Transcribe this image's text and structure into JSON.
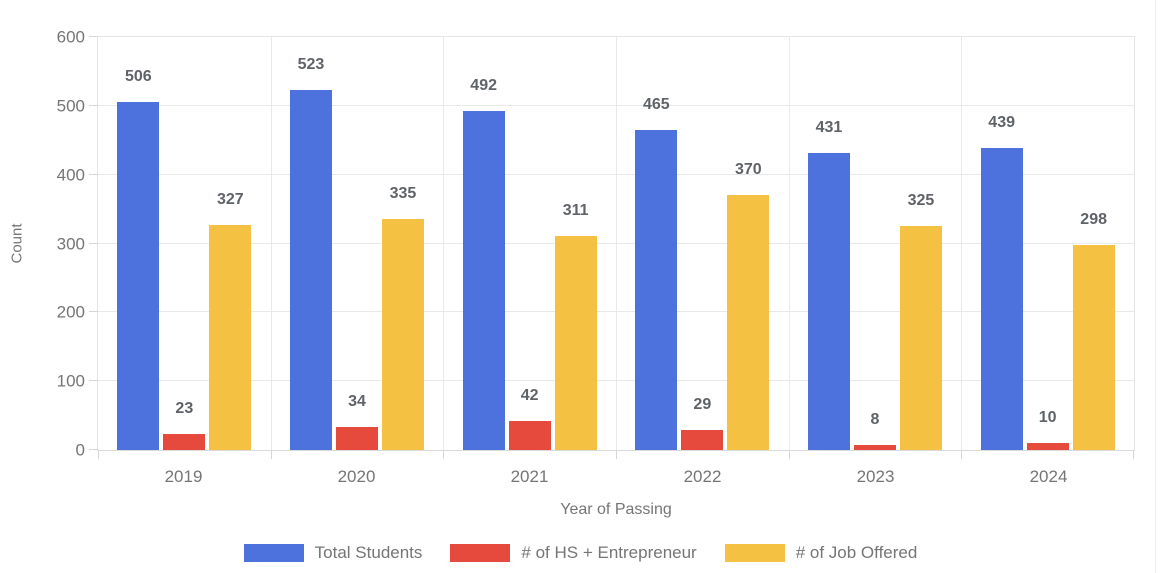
{
  "chart_data": {
    "type": "bar",
    "title": "",
    "xlabel": "Year of Passing",
    "ylabel": "Count",
    "categories": [
      "2019",
      "2020",
      "2021",
      "2022",
      "2023",
      "2024"
    ],
    "series": [
      {
        "name": "Total Students",
        "color": "#4D72DE",
        "values": [
          506,
          523,
          492,
          465,
          431,
          439
        ]
      },
      {
        "name": "# of HS + Entrepreneur",
        "color": "#E64A3D",
        "values": [
          23,
          34,
          42,
          29,
          8,
          10
        ]
      },
      {
        "name": "# of Job Offered",
        "color": "#F4C142",
        "values": [
          327,
          335,
          311,
          370,
          325,
          298
        ]
      }
    ],
    "ylim": [
      0,
      600
    ],
    "ytick_step": 100,
    "yticks": [
      "0",
      "100",
      "200",
      "300",
      "400",
      "500",
      "600"
    ],
    "grid": true,
    "value_labels": true,
    "legend_position": "bottom",
    "colors": {
      "value_label_text": "#5f6368",
      "axis_text": "#757575",
      "gridline": "#e9e9e9"
    }
  }
}
